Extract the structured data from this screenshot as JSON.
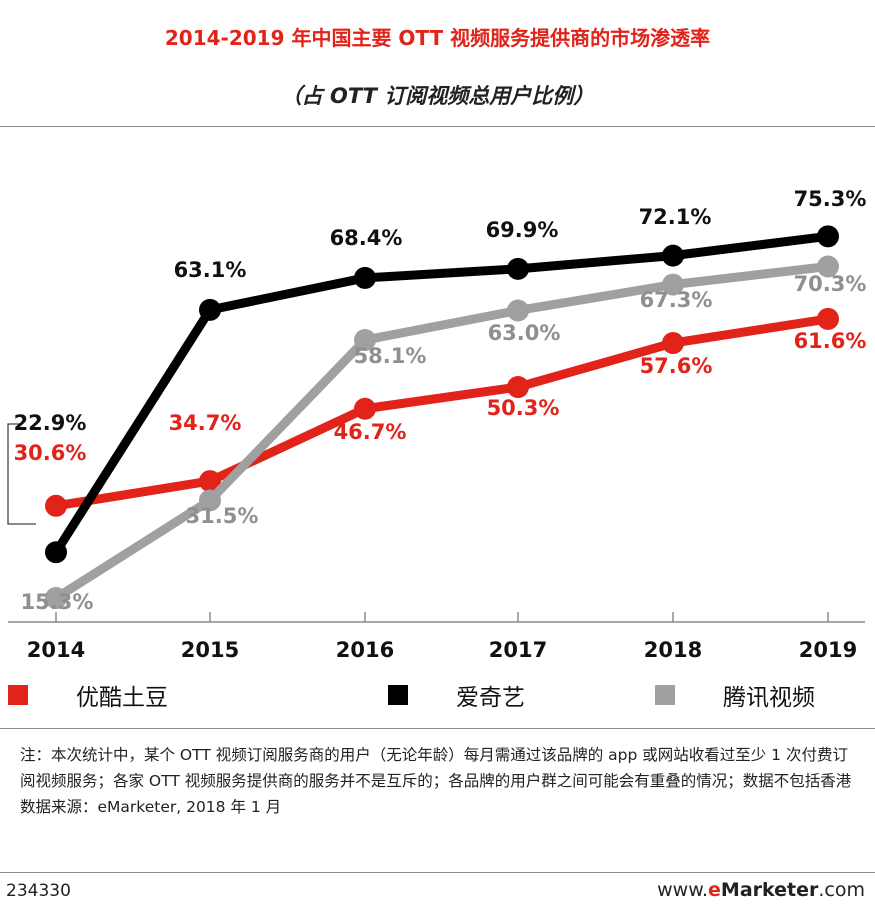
{
  "header": {
    "title": "2014-2019 年中国主要 OTT 视频服务提供商的市场渗透率",
    "subtitle": "（占 OTT 订阅视频总用户比例）"
  },
  "chart_data": {
    "type": "line",
    "title": "2014-2019 年中国主要 OTT 视频服务提供商的市场渗透率",
    "subtitle": "（占 OTT 订阅视频总用户比例）",
    "xlabel": "",
    "ylabel": "",
    "ylim": [
      10,
      80
    ],
    "grid": false,
    "legend": "bottom",
    "x": [
      "2014",
      "2015",
      "2016",
      "2017",
      "2018",
      "2019"
    ],
    "series": [
      {
        "name": "优酷土豆",
        "color": "#e2231a",
        "label_color": "#e2231a",
        "values": [
          30.6,
          34.7,
          46.7,
          50.3,
          57.6,
          61.6
        ],
        "labels": [
          "30.6%",
          "34.7%",
          "46.7%",
          "50.3%",
          "57.6%",
          "61.6%"
        ]
      },
      {
        "name": "爱奇艺",
        "color": "#000000",
        "label_color": "#111111",
        "values": [
          22.9,
          63.1,
          68.4,
          69.9,
          72.1,
          75.3
        ],
        "labels": [
          "22.9%",
          "63.1%",
          "68.4%",
          "69.9%",
          "72.1%",
          "75.3%"
        ]
      },
      {
        "name": "腾讯视频",
        "color": "#a0a0a0",
        "label_color": "#8f8f8f",
        "values": [
          15.3,
          31.5,
          58.1,
          63.0,
          67.3,
          70.3
        ],
        "labels": [
          "15.3%",
          "31.5%",
          "58.1%",
          "63.0%",
          "67.3%",
          "70.3%"
        ]
      }
    ]
  },
  "legend": [
    {
      "label": "优酷土豆",
      "color": "#e2231a"
    },
    {
      "label": "爱奇艺",
      "color": "#000000"
    },
    {
      "label": "腾讯视频",
      "color": "#a0a0a0"
    }
  ],
  "note": {
    "text": "注：本次统计中，某个 OTT 视频订阅服务商的用户（无论年龄）每月需通过该品牌的 app 或网站收看过至少 1 次付费订阅视频服务；各家 OTT 视频服务提供商的服务并不是互斥的；各品牌的用户群之间可能会有重叠的情况；数据不包括香港",
    "source": "数据来源：eMarketer, 2018 年 1 月"
  },
  "footer": {
    "id": "234330",
    "brand_prefix": "www.",
    "brand_e": "e",
    "brand_name": "Marketer",
    "brand_suffix": ".com"
  }
}
